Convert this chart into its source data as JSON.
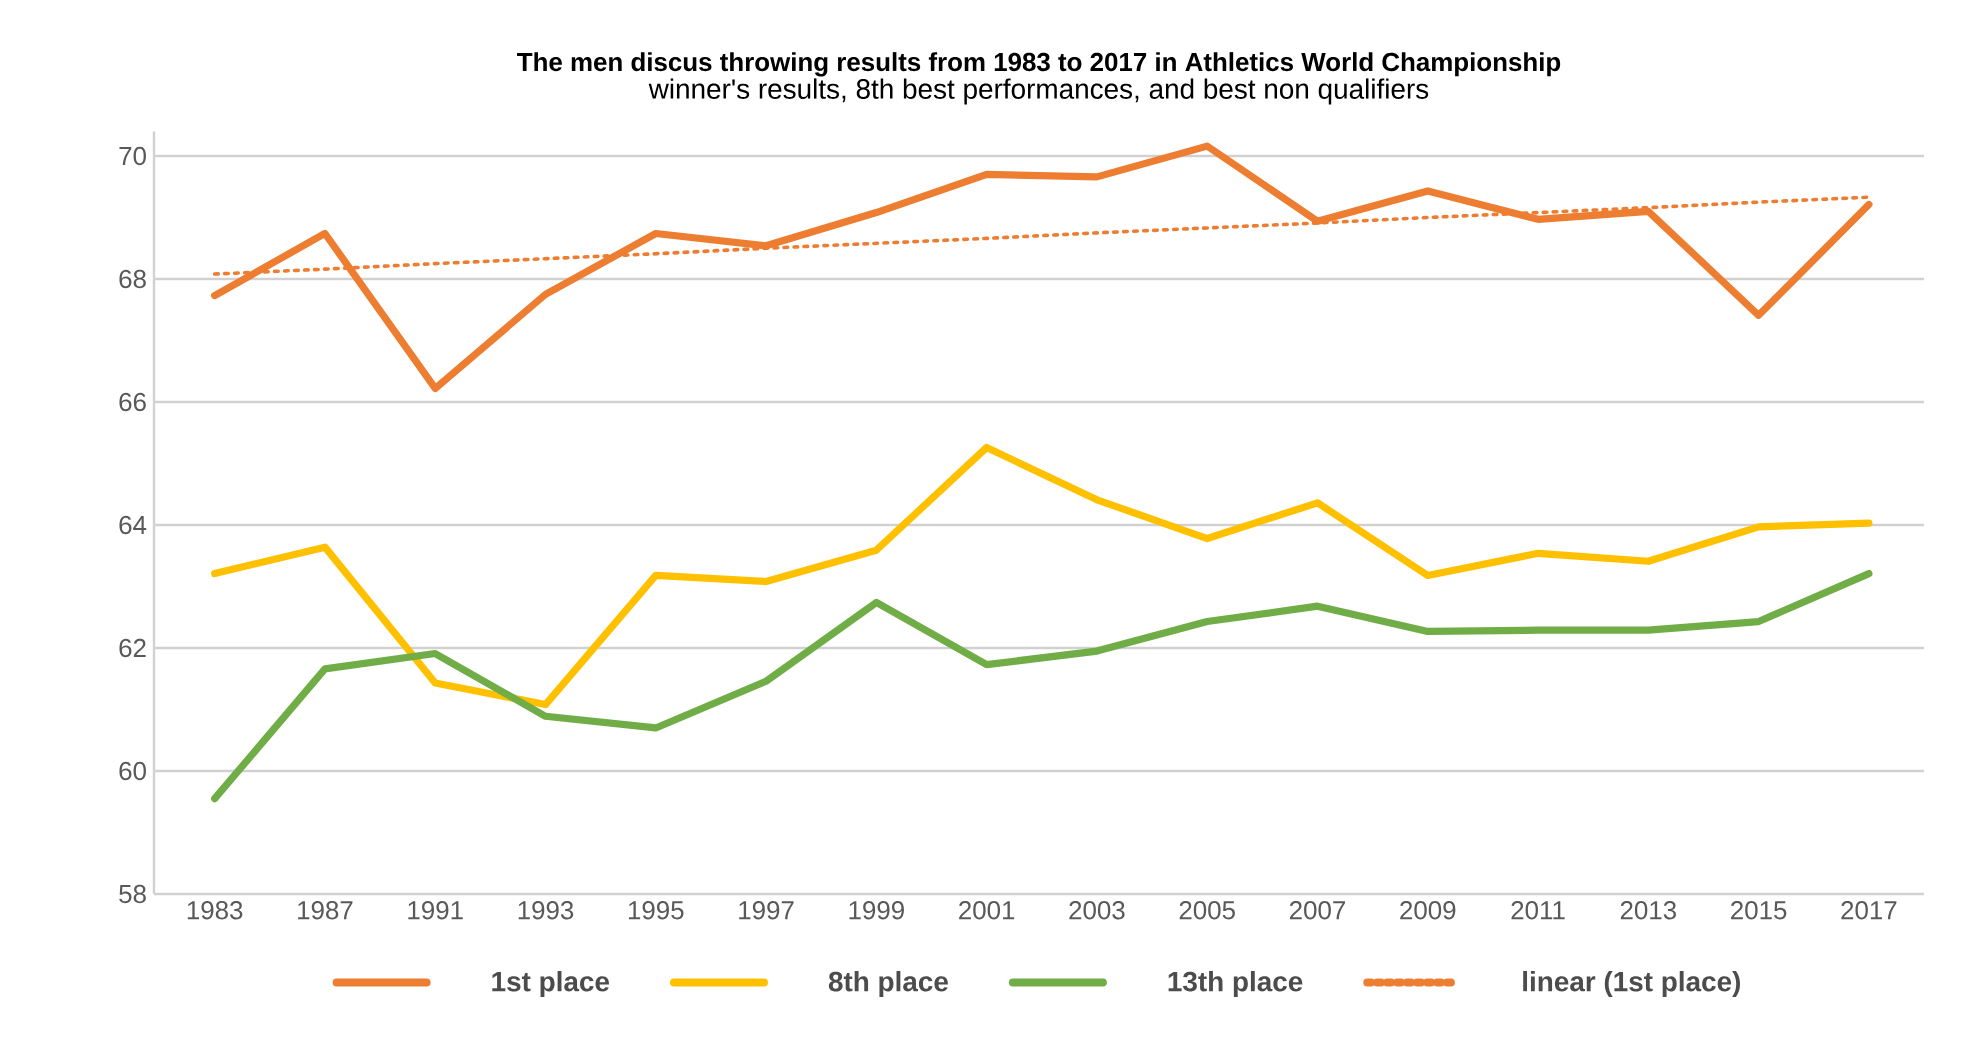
{
  "chart_data": {
    "type": "line",
    "title": "The men discus throwing results from 1983 to 2017 in  Athletics World Championship",
    "subtitle": "winner's results, 8th best performances, and best non qualifiers",
    "categories": [
      "1983",
      "1987",
      "1991",
      "1993",
      "1995",
      "1997",
      "1999",
      "2001",
      "2003",
      "2005",
      "2007",
      "2009",
      "2011",
      "2013",
      "2015",
      "2017"
    ],
    "series": [
      {
        "name": "1st place",
        "color": "#ed7d31",
        "values": [
          67.73,
          68.74,
          66.22,
          67.75,
          68.74,
          68.54,
          69.08,
          69.7,
          69.66,
          70.16,
          68.94,
          69.43,
          68.97,
          69.1,
          67.41,
          69.21
        ]
      },
      {
        "name": "8th place",
        "color": "#ffc000",
        "values": [
          63.21,
          63.64,
          61.43,
          61.08,
          63.18,
          63.08,
          63.59,
          65.26,
          64.41,
          63.78,
          64.36,
          63.18,
          63.54,
          63.41,
          63.97,
          64.03
        ]
      },
      {
        "name": "13th place",
        "color": "#70ad47",
        "values": [
          59.55,
          61.66,
          61.91,
          60.89,
          60.7,
          61.46,
          62.74,
          61.73,
          61.95,
          62.43,
          62.68,
          62.27,
          62.29,
          62.29,
          62.43,
          63.21
        ]
      },
      {
        "name": "linear (1st place)",
        "color": "#ed7d31",
        "line_style": "dotted",
        "values": [
          68.08,
          68.16,
          68.25,
          68.33,
          68.41,
          68.5,
          68.58,
          68.66,
          68.75,
          68.83,
          68.91,
          69,
          69.08,
          69.16,
          69.25,
          69.33
        ]
      }
    ],
    "ylim": [
      58,
      70.4
    ],
    "yticks": [
      58,
      60,
      62,
      64,
      66,
      68,
      70
    ],
    "grid": "y",
    "legend": "bottom",
    "line_style": "solid",
    "marker": "none"
  }
}
